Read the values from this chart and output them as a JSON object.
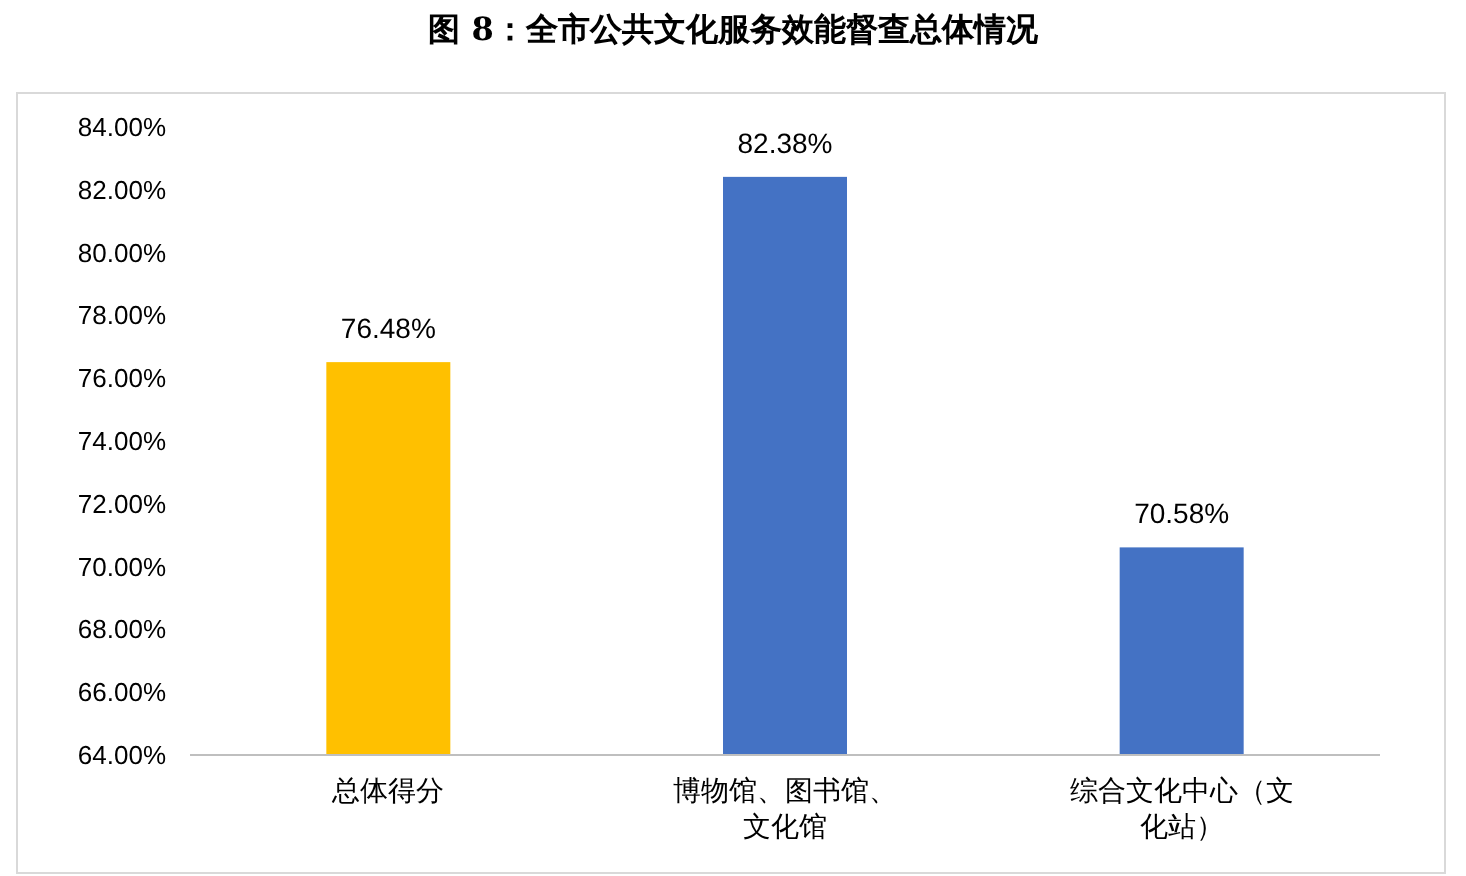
{
  "chart_data": {
    "type": "bar",
    "title": "图 8：全市公共文化服务效能督查总体情况",
    "categories": [
      "总体得分",
      "博物馆、图书馆、文化馆",
      "综合文化中心（文化站）"
    ],
    "values": [
      76.48,
      82.38,
      70.58
    ],
    "colors": [
      "#ffc000",
      "#4472c4",
      "#4472c4"
    ],
    "value_labels": [
      "76.48%",
      "82.38%",
      "70.58%"
    ],
    "ylim": [
      64,
      84
    ],
    "yticks": [
      {
        "value": 64,
        "label": "64.00%"
      },
      {
        "value": 66,
        "label": "66.00%"
      },
      {
        "value": 68,
        "label": "68.00%"
      },
      {
        "value": 70,
        "label": "70.00%"
      },
      {
        "value": 72,
        "label": "72.00%"
      },
      {
        "value": 74,
        "label": "74.00%"
      },
      {
        "value": 76,
        "label": "76.00%"
      },
      {
        "value": 78,
        "label": "78.00%"
      },
      {
        "value": 80,
        "label": "80.00%"
      },
      {
        "value": 82,
        "label": "82.00%"
      },
      {
        "value": 84,
        "label": "84.00%"
      }
    ],
    "grid": false
  }
}
